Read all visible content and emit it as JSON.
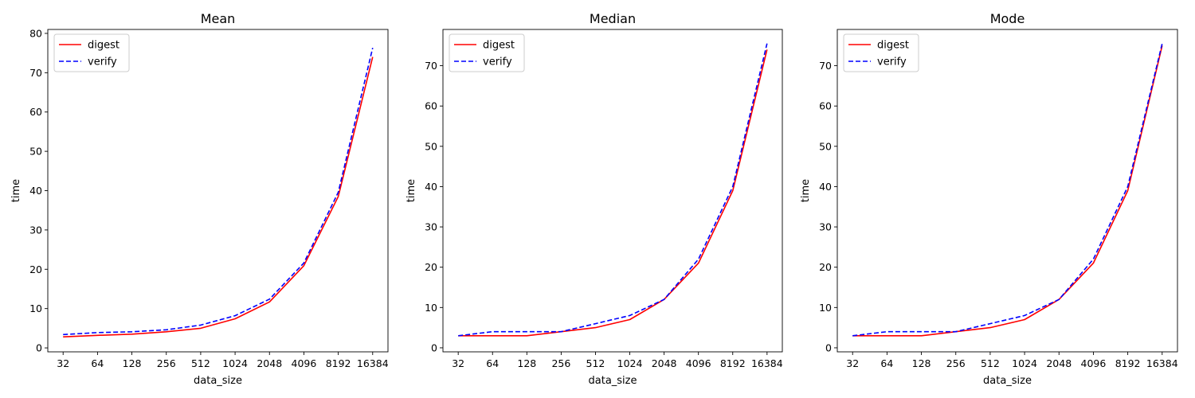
{
  "chart_data": [
    {
      "type": "line",
      "title": "Mean",
      "xlabel": "data_size",
      "ylabel": "time",
      "categories": [
        "32",
        "64",
        "128",
        "256",
        "512",
        "1024",
        "2048",
        "4096",
        "8192",
        "16384"
      ],
      "ylim": [
        -1,
        81
      ],
      "yticks": [
        0,
        10,
        20,
        30,
        40,
        50,
        60,
        70,
        80
      ],
      "legend_position": "top-left",
      "grid": false,
      "series": [
        {
          "name": "digest",
          "color": "#ff0000",
          "style": "solid",
          "values": [
            2.8,
            3.2,
            3.5,
            4.1,
            5.0,
            7.4,
            11.7,
            20.9,
            38.5,
            74.0
          ]
        },
        {
          "name": "verify",
          "color": "#0000ff",
          "style": "dashed",
          "values": [
            3.4,
            3.9,
            4.1,
            4.6,
            5.8,
            8.2,
            12.4,
            21.6,
            39.6,
            76.3
          ]
        }
      ]
    },
    {
      "type": "line",
      "title": "Median",
      "xlabel": "data_size",
      "ylabel": "time",
      "categories": [
        "32",
        "64",
        "128",
        "256",
        "512",
        "1024",
        "2048",
        "4096",
        "8192",
        "16384"
      ],
      "ylim": [
        -1,
        79
      ],
      "yticks": [
        0,
        10,
        20,
        30,
        40,
        50,
        60,
        70
      ],
      "legend_position": "top-left",
      "grid": false,
      "series": [
        {
          "name": "digest",
          "color": "#ff0000",
          "style": "solid",
          "values": [
            3,
            3,
            3,
            4,
            5,
            7,
            12,
            21,
            39,
            74
          ]
        },
        {
          "name": "verify",
          "color": "#0000ff",
          "style": "dashed",
          "values": [
            3,
            4,
            4,
            4,
            6,
            8,
            12,
            22,
            40,
            75.5
          ]
        }
      ]
    },
    {
      "type": "line",
      "title": "Mode",
      "xlabel": "data_size",
      "ylabel": "time",
      "categories": [
        "32",
        "64",
        "128",
        "256",
        "512",
        "1024",
        "2048",
        "4096",
        "8192",
        "16384"
      ],
      "ylim": [
        -1,
        79
      ],
      "yticks": [
        0,
        10,
        20,
        30,
        40,
        50,
        60,
        70
      ],
      "legend_position": "top-left",
      "grid": false,
      "series": [
        {
          "name": "digest",
          "color": "#ff0000",
          "style": "solid",
          "values": [
            3,
            3,
            3,
            4,
            5,
            7,
            12,
            21,
            39,
            75
          ]
        },
        {
          "name": "verify",
          "color": "#0000ff",
          "style": "dashed",
          "values": [
            3,
            4,
            4,
            4,
            6,
            8,
            12,
            22,
            40,
            75.5
          ]
        }
      ]
    }
  ]
}
